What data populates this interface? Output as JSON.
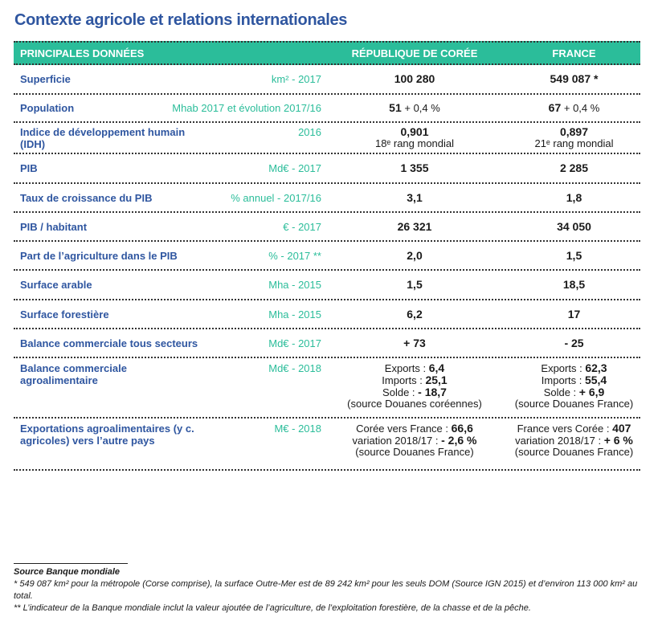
{
  "title": "Contexte agricole et relations internationales",
  "header": {
    "label": "PRINCIPALES DONNÉES",
    "kr": "RÉPUBLIQUE DE CORÉE",
    "fr": "FRANCE"
  },
  "colors": {
    "title": "#2f56a0",
    "header_bg": "#2bbd9a",
    "unit": "#2bbd9a"
  },
  "rows": [
    {
      "label": "Superficie",
      "unit": "km² - 2017",
      "kr": [
        [
          {
            "t": "100 280",
            "b": true
          }
        ]
      ],
      "fr": [
        [
          {
            "t": "549 087 *",
            "b": true
          }
        ]
      ]
    },
    {
      "label": "Population",
      "unit": "Mhab 2017 et évolution 2017/16",
      "kr": [
        [
          {
            "t": "51",
            "b": true
          },
          {
            "t": " + 0,4 %"
          }
        ]
      ],
      "fr": [
        [
          {
            "t": "67",
            "b": true
          },
          {
            "t": " + 0,4 %"
          }
        ]
      ]
    },
    {
      "label": "Indice de développement humain (IDH)",
      "unit": "2016",
      "kr": [
        [
          {
            "t": "0,901",
            "b": true
          }
        ],
        [
          {
            "t": "18ᵉ rang mondial"
          }
        ]
      ],
      "fr": [
        [
          {
            "t": "0,897",
            "b": true
          }
        ],
        [
          {
            "t": "21ᵉ rang mondial"
          }
        ]
      ]
    },
    {
      "label": "PIB",
      "unit": "Md€ - 2017",
      "kr": [
        [
          {
            "t": "1 355",
            "b": true
          }
        ]
      ],
      "fr": [
        [
          {
            "t": "2 285",
            "b": true
          }
        ]
      ]
    },
    {
      "label": "Taux de croissance du PIB",
      "unit": "% annuel - 2017/16",
      "kr": [
        [
          {
            "t": "3,1",
            "b": true
          }
        ]
      ],
      "fr": [
        [
          {
            "t": "1,8",
            "b": true
          }
        ]
      ]
    },
    {
      "label": "PIB / habitant",
      "unit": "€ - 2017",
      "kr": [
        [
          {
            "t": "26 321",
            "b": true
          }
        ]
      ],
      "fr": [
        [
          {
            "t": "34 050",
            "b": true
          }
        ]
      ]
    },
    {
      "label": "Part de l’agriculture dans le PIB",
      "unit": "% - 2017 **",
      "kr": [
        [
          {
            "t": "2,0",
            "b": true
          }
        ]
      ],
      "fr": [
        [
          {
            "t": "1,5",
            "b": true
          }
        ]
      ]
    },
    {
      "label": "Surface arable",
      "unit": "Mha - 2015",
      "kr": [
        [
          {
            "t": "1,5",
            "b": true
          }
        ]
      ],
      "fr": [
        [
          {
            "t": "18,5",
            "b": true
          }
        ]
      ]
    },
    {
      "label": "Surface forestière",
      "unit": "Mha - 2015",
      "kr": [
        [
          {
            "t": "6,2",
            "b": true
          }
        ]
      ],
      "fr": [
        [
          {
            "t": "17",
            "b": true
          }
        ]
      ]
    },
    {
      "label": "Balance commerciale tous secteurs",
      "unit": "Md€ - 2017",
      "kr": [
        [
          {
            "t": "+ 73",
            "b": true
          }
        ]
      ],
      "fr": [
        [
          {
            "t": "- 25",
            "b": true
          }
        ]
      ]
    },
    {
      "label": "Balance commerciale  agroalimentaire",
      "unit": "Md€ - 2018",
      "top": true,
      "kr": [
        [
          {
            "t": "Exports : "
          },
          {
            "t": "6,4",
            "b": true
          }
        ],
        [
          {
            "t": "Imports : "
          },
          {
            "t": "25,1",
            "b": true
          }
        ],
        [
          {
            "t": "Solde : "
          },
          {
            "t": "- 18,7",
            "b": true
          }
        ],
        [
          {
            "t": "(source Douanes coréennes)"
          }
        ]
      ],
      "fr": [
        [
          {
            "t": "Exports : "
          },
          {
            "t": "62,3",
            "b": true
          }
        ],
        [
          {
            "t": "Imports : "
          },
          {
            "t": "55,4",
            "b": true
          }
        ],
        [
          {
            "t": "Solde : "
          },
          {
            "t": "+ 6,9",
            "b": true
          }
        ],
        [
          {
            "t": "(source Douanes France)"
          }
        ]
      ]
    },
    {
      "label": "Exportations agroalimentaires (y c. agricoles) vers l’autre pays",
      "unit": "M€ - 2018",
      "top": true,
      "kr": [
        [
          {
            "t": "Corée vers France : "
          },
          {
            "t": "66,6",
            "b": true
          }
        ],
        [
          {
            "t": "variation 2018/17 : "
          },
          {
            "t": "- 2,6 %",
            "b": true
          }
        ],
        [
          {
            "t": "(source Douanes France)"
          }
        ]
      ],
      "fr": [
        [
          {
            "t": "France vers Corée : "
          },
          {
            "t": "407",
            "b": true
          }
        ],
        [
          {
            "t": "variation 2018/17 : "
          },
          {
            "t": "+ 6 %",
            "b": true
          }
        ],
        [
          {
            "t": "(source Douanes France)"
          }
        ]
      ]
    }
  ],
  "footnotes": {
    "source": "Source Banque mondiale",
    "note1": "* 549 087 km² pour la métropole (Corse comprise), la surface Outre-Mer est de 89 242 km² pour les seuls DOM (Source IGN 2015) et d’environ 113 000 km² au total.",
    "note2": "** L’indicateur de la Banque mondiale inclut la valeur ajoutée de l’agriculture, de l’exploitation forestière, de la chasse et de la pêche."
  }
}
